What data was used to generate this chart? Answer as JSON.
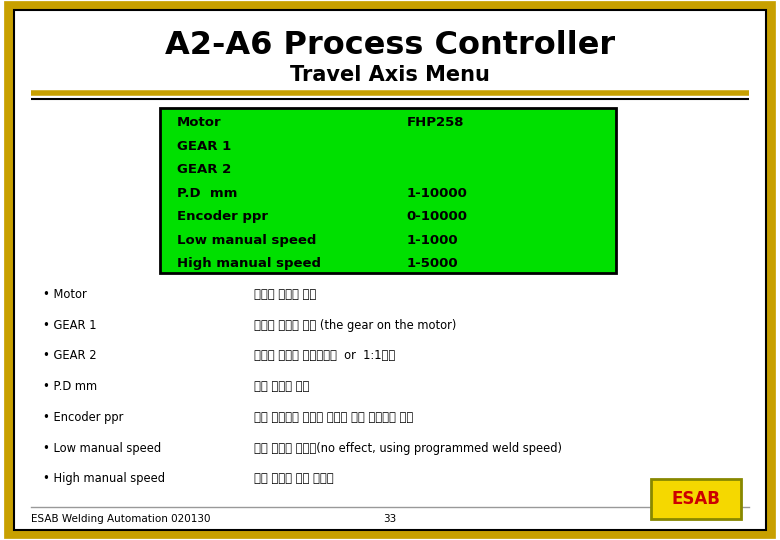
{
  "title_line1": "A2-A6 Process Controller",
  "title_line2": "Travel Axis Menu",
  "bg_color": "#ffffff",
  "border_outer_color": "#c8a000",
  "border_inner_color": "#000000",
  "separator_color_gold": "#c8a000",
  "separator_color_black": "#000000",
  "green_box_color": "#00e000",
  "green_box_border": "#000000",
  "table_rows": [
    {
      "label": "Motor",
      "value": "FHP258"
    },
    {
      "label": "GEAR 1",
      "value": ""
    },
    {
      "label": "GEAR 2",
      "value": ""
    },
    {
      "label": "P.D  mm",
      "value": "1-10000"
    },
    {
      "label": "Encoder ppr",
      "value": "0-10000"
    },
    {
      "label": "Low manual speed",
      "value": "1-1000"
    },
    {
      "label": "High manual speed",
      "value": "1-5000"
    }
  ],
  "bullet_items": [
    {
      "label": "Motor",
      "desc": "트래블 모타를 선택"
    },
    {
      "label": "GEAR 1",
      "desc": "첫번째 기어를 선택 (the gear on the motor)"
    },
    {
      "label": "GEAR 2",
      "desc": "두번째 기어를 선택하거나  or  1:1설정"
    },
    {
      "label": "P.D mm",
      "desc": "휴의 직경을 입력"
    },
    {
      "label": "Encoder ppr",
      "desc": "만약 엔코드라 타코가 있다면 폄스 주파수를 입력"
    },
    {
      "label": "Low manual speed",
      "desc": "수동 트래블 스피드(no effect, using programmed weld speed)"
    },
    {
      "label": "High manual speed",
      "desc": "수동 트래블 고속 스피스"
    }
  ],
  "footer_left": "ESAB Welding Automation 020130",
  "footer_center": "33",
  "esab_box_color": "#f5d800",
  "esab_text_color": "#cc0000",
  "esab_text": "ESAB"
}
